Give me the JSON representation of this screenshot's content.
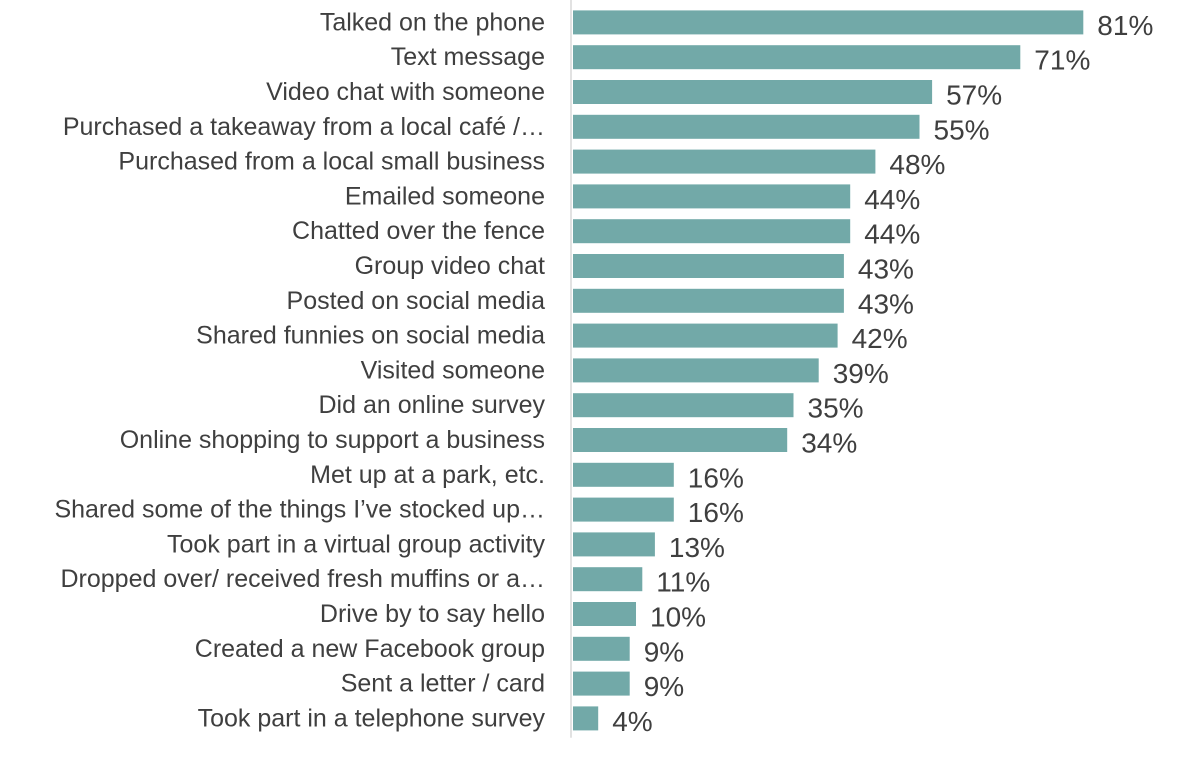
{
  "chart_data": {
    "type": "bar",
    "orientation": "horizontal",
    "title": "",
    "xlabel": "",
    "ylabel": "",
    "value_suffix": "%",
    "xlim": [
      0,
      100
    ],
    "grid": false,
    "legend": "none",
    "bar_color": "#72a9a8",
    "axis_color": "#d9d9d9",
    "text_color": "#3f3f3f",
    "categories": [
      "Talked on the phone",
      "Text message",
      "Video chat with someone",
      "Purchased a takeaway from a local café /…",
      "Purchased from a local small business",
      "Emailed someone",
      "Chatted over the fence",
      "Group video chat",
      "Posted on social media",
      "Shared funnies on social media",
      "Visited someone",
      "Did an online survey",
      "Online shopping to support a business",
      "Met up at a park, etc.",
      "Shared some of the things I’ve stocked up…",
      "Took part in a virtual group activity",
      "Dropped over/ received  fresh muffins or a…",
      "Drive by to say hello",
      "Created a new Facebook group",
      "Sent a letter / card",
      "Took part in a telephone survey"
    ],
    "values": [
      81,
      71,
      57,
      55,
      48,
      44,
      44,
      43,
      43,
      42,
      39,
      35,
      34,
      16,
      16,
      13,
      11,
      10,
      9,
      9,
      4
    ],
    "value_labels": [
      "81%",
      "71%",
      "57%",
      "55%",
      "48%",
      "44%",
      "44%",
      "43%",
      "43%",
      "42%",
      "39%",
      "35%",
      "34%",
      "16%",
      "16%",
      "13%",
      "11%",
      "10%",
      "9%",
      "9%",
      "4%"
    ]
  }
}
